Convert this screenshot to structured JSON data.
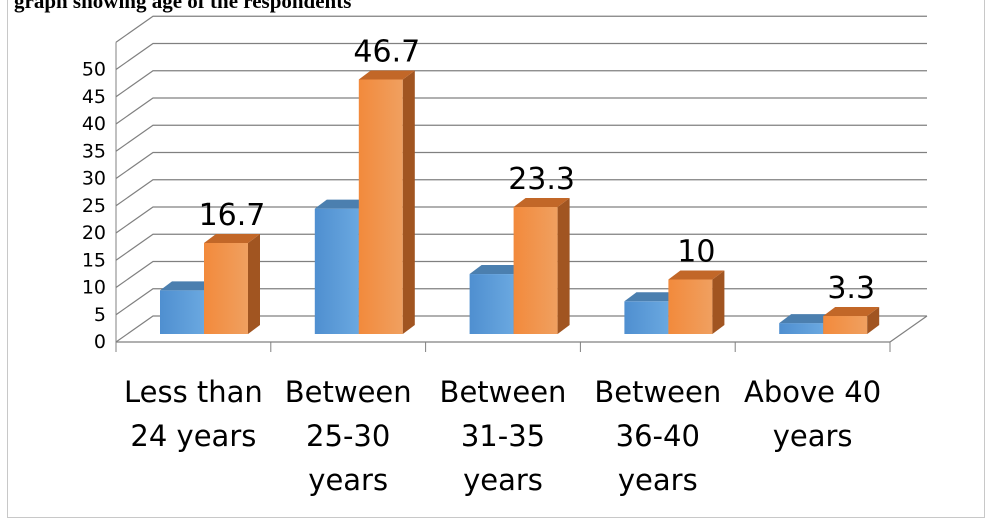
{
  "figure": {
    "caption_partial": "graph showing age of the respondents"
  },
  "colors": {
    "series_a": "#5b9bd5",
    "series_b": "#ed7d31",
    "grid": "#808080",
    "axis": "#000000"
  },
  "chart_data": {
    "type": "bar",
    "style": "3d-clustered-column",
    "categories": [
      [
        "Less than",
        "24 years"
      ],
      [
        "Between",
        "25-30",
        "years"
      ],
      [
        "Between",
        "31-35",
        "years"
      ],
      [
        "Between",
        "36-40",
        "years"
      ],
      [
        "Above 40",
        "years"
      ]
    ],
    "series": [
      {
        "values": [
          8,
          23,
          11,
          6,
          2
        ]
      },
      {
        "values": [
          16.7,
          46.7,
          23.3,
          10,
          3.3
        ],
        "data_labels": [
          "16.7",
          "46.7",
          "23.3",
          "10",
          "3.3"
        ]
      }
    ],
    "y_ticks": [
      "0",
      "5",
      "10",
      "15",
      "20",
      "25",
      "30",
      "35",
      "40",
      "45",
      "50"
    ],
    "ylim": [
      0,
      50
    ],
    "ymax_wall": 55,
    "grid": true,
    "legend": "none"
  }
}
